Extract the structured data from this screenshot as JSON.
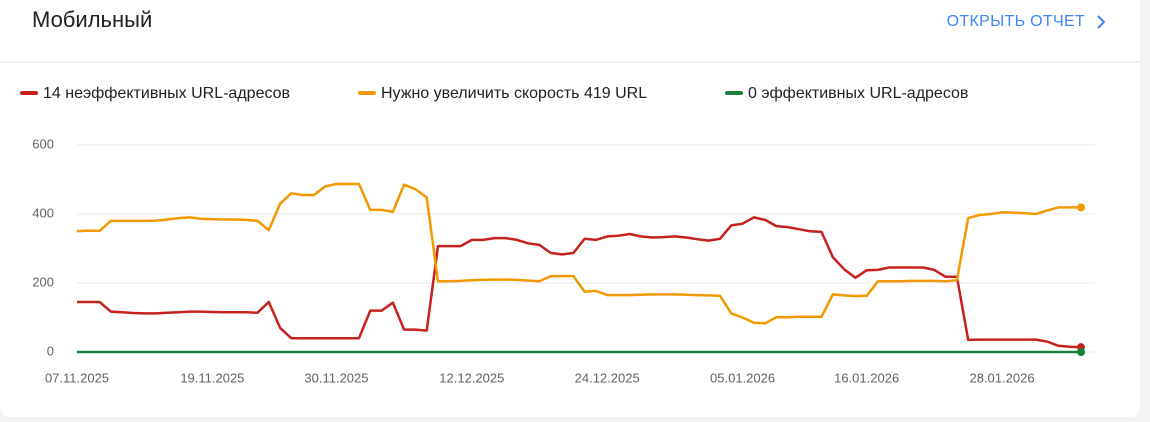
{
  "header": {
    "title": "Мобильный",
    "link": "ОТКРЫТЬ ОТЧЕТ"
  },
  "chart_data": {
    "type": "line",
    "categories": [
      "07.11.2025",
      null,
      null,
      null,
      null,
      null,
      null,
      null,
      null,
      null,
      null,
      null,
      "19.11.2025",
      null,
      null,
      null,
      null,
      null,
      null,
      null,
      null,
      null,
      null,
      "30.11.2025",
      null,
      null,
      null,
      null,
      null,
      null,
      null,
      null,
      null,
      null,
      null,
      "12.12.2025",
      null,
      null,
      null,
      null,
      null,
      null,
      null,
      null,
      null,
      null,
      null,
      "24.12.2025",
      null,
      null,
      null,
      null,
      null,
      null,
      null,
      null,
      null,
      null,
      null,
      "05.01.2026",
      null,
      null,
      null,
      null,
      null,
      null,
      null,
      null,
      null,
      null,
      "16.01.2026",
      null,
      null,
      null,
      null,
      null,
      null,
      null,
      null,
      null,
      null,
      null,
      "28.01.2026",
      null,
      null,
      null,
      null,
      null,
      null,
      null
    ],
    "series": [
      {
        "name": "14 неэффективных URL-адресов",
        "color": "#c5221f",
        "values": [
          145,
          145,
          145,
          117,
          115,
          113,
          112,
          112,
          114,
          115,
          117,
          117,
          116,
          115,
          115,
          115,
          114,
          145,
          70,
          40,
          40,
          40,
          40,
          40,
          40,
          40,
          120,
          120,
          143,
          65,
          65,
          62,
          307,
          307,
          307,
          325,
          325,
          330,
          330,
          325,
          315,
          310,
          287,
          283,
          287,
          328,
          325,
          335,
          337,
          342,
          335,
          332,
          333,
          335,
          332,
          327,
          323,
          328,
          367,
          372,
          390,
          383,
          365,
          362,
          356,
          350,
          348,
          275,
          240,
          215,
          237,
          238,
          245,
          245,
          245,
          245,
          238,
          218,
          218,
          35,
          36,
          36,
          36,
          36,
          36,
          36,
          30,
          18,
          15,
          14
        ]
      },
      {
        "name": "Нужно увеличить скорость 419 URL",
        "color": "#f29900",
        "values": [
          350,
          352,
          351,
          380,
          380,
          380,
          380,
          381,
          384,
          388,
          390,
          386,
          385,
          384,
          384,
          383,
          380,
          353,
          430,
          460,
          455,
          455,
          480,
          487,
          487,
          487,
          412,
          412,
          406,
          485,
          472,
          448,
          205,
          205,
          206,
          208,
          209,
          210,
          210,
          209,
          207,
          205,
          220,
          220,
          220,
          175,
          177,
          165,
          165,
          165,
          166,
          167,
          167,
          167,
          166,
          165,
          164,
          163,
          112,
          100,
          85,
          83,
          101,
          101,
          102,
          102,
          102,
          167,
          164,
          162,
          163,
          205,
          205,
          205,
          206,
          206,
          206,
          205,
          208,
          388,
          397,
          400,
          405,
          404,
          402,
          400,
          410,
          419,
          419,
          419
        ]
      },
      {
        "name": "0 эффективных URL-адресов",
        "color": "#188038",
        "values": [
          0,
          0,
          0,
          0,
          0,
          0,
          0,
          0,
          0,
          0,
          0,
          0,
          0,
          0,
          0,
          0,
          0,
          0,
          0,
          0,
          0,
          0,
          0,
          0,
          0,
          0,
          0,
          0,
          0,
          0,
          0,
          0,
          0,
          0,
          0,
          0,
          0,
          0,
          0,
          0,
          0,
          0,
          0,
          0,
          0,
          0,
          0,
          0,
          0,
          0,
          0,
          0,
          0,
          0,
          0,
          0,
          0,
          0,
          0,
          0,
          0,
          0,
          0,
          0,
          0,
          0,
          0,
          0,
          0,
          0,
          0,
          0,
          0,
          0,
          0,
          0,
          0,
          0,
          0,
          0,
          0,
          0,
          0,
          0,
          0,
          0,
          0,
          0,
          0,
          0
        ]
      }
    ],
    "ylim": [
      0,
      600
    ],
    "yticks": [
      0,
      200,
      400,
      600
    ],
    "grid": true
  }
}
